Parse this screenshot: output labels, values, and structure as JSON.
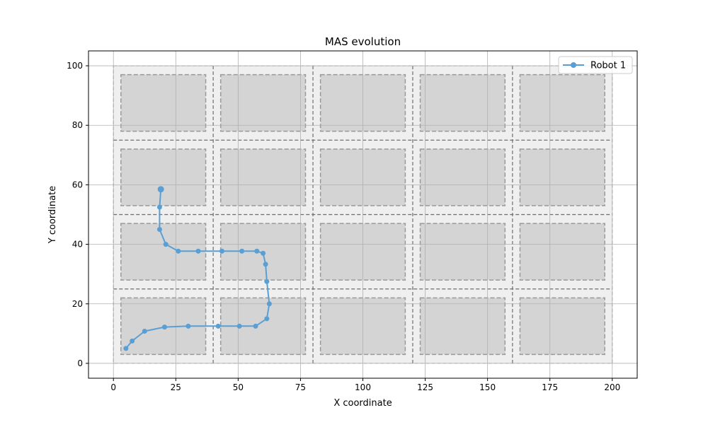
{
  "chart_data": {
    "type": "line",
    "title": "MAS evolution",
    "xlabel": "X coordinate",
    "ylabel": "Y coordinate",
    "xlim": [
      -10,
      210
    ],
    "ylim": [
      -5,
      105
    ],
    "xticks": [
      0,
      25,
      50,
      75,
      100,
      125,
      150,
      175,
      200
    ],
    "yticks": [
      0,
      20,
      40,
      60,
      80,
      100
    ],
    "xtick_labels": [
      "0",
      "25",
      "50",
      "75",
      "100",
      "125",
      "150",
      "175",
      "200"
    ],
    "ytick_labels": [
      "0",
      "20",
      "40",
      "60",
      "80",
      "100"
    ],
    "grid": true,
    "legend": "top-right",
    "environment": {
      "x_range": [
        0,
        200
      ],
      "y_range": [
        0,
        100
      ],
      "region_columns_x": [
        0,
        40,
        80,
        120,
        160,
        200
      ],
      "region_rows_y": [
        0,
        25,
        50,
        75,
        100
      ],
      "blocks": [
        {
          "x0": 3,
          "x1": 37,
          "y0": 3,
          "y1": 22
        },
        {
          "x0": 43,
          "x1": 77,
          "y0": 3,
          "y1": 22
        },
        {
          "x0": 83,
          "x1": 117,
          "y0": 3,
          "y1": 22
        },
        {
          "x0": 123,
          "x1": 157,
          "y0": 3,
          "y1": 22
        },
        {
          "x0": 163,
          "x1": 197,
          "y0": 3,
          "y1": 22
        },
        {
          "x0": 3,
          "x1": 37,
          "y0": 28,
          "y1": 47
        },
        {
          "x0": 43,
          "x1": 77,
          "y0": 28,
          "y1": 47
        },
        {
          "x0": 83,
          "x1": 117,
          "y0": 28,
          "y1": 47
        },
        {
          "x0": 123,
          "x1": 157,
          "y0": 28,
          "y1": 47
        },
        {
          "x0": 163,
          "x1": 197,
          "y0": 28,
          "y1": 47
        },
        {
          "x0": 3,
          "x1": 37,
          "y0": 53,
          "y1": 72
        },
        {
          "x0": 43,
          "x1": 77,
          "y0": 53,
          "y1": 72
        },
        {
          "x0": 83,
          "x1": 117,
          "y0": 53,
          "y1": 72
        },
        {
          "x0": 123,
          "x1": 157,
          "y0": 53,
          "y1": 72
        },
        {
          "x0": 163,
          "x1": 197,
          "y0": 53,
          "y1": 72
        },
        {
          "x0": 3,
          "x1": 37,
          "y0": 78,
          "y1": 97
        },
        {
          "x0": 43,
          "x1": 77,
          "y0": 78,
          "y1": 97
        },
        {
          "x0": 83,
          "x1": 117,
          "y0": 78,
          "y1": 97
        },
        {
          "x0": 123,
          "x1": 157,
          "y0": 78,
          "y1": 97
        },
        {
          "x0": 163,
          "x1": 197,
          "y0": 78,
          "y1": 97
        }
      ]
    },
    "series": [
      {
        "name": "Robot 1",
        "color": "#5a9fd4",
        "x": [
          5,
          7.5,
          12.5,
          20.5,
          30,
          42,
          50.5,
          57,
          61.5,
          62.5,
          61.5,
          61,
          60,
          57.5,
          51.5,
          43.5,
          34,
          26,
          21,
          18.5,
          18.5,
          19
        ],
        "y": [
          5,
          7.5,
          10.8,
          12.2,
          12.5,
          12.5,
          12.5,
          12.5,
          15,
          20,
          27.5,
          33.3,
          37,
          37.7,
          37.7,
          37.7,
          37.7,
          37.7,
          40,
          45,
          52.5,
          58.5
        ]
      }
    ]
  }
}
